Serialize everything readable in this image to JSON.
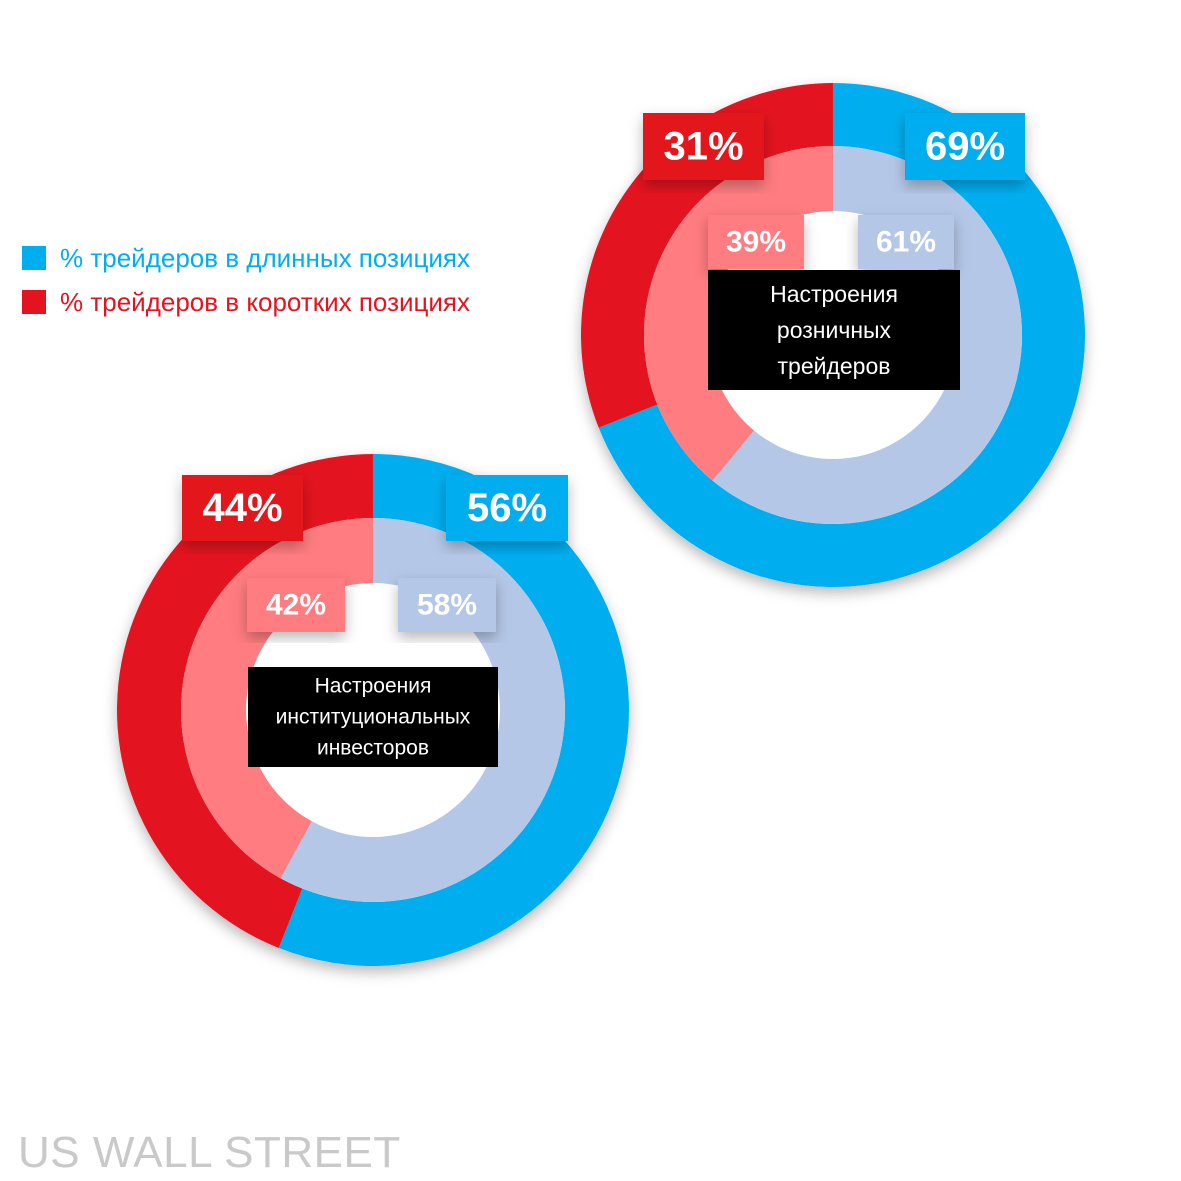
{
  "legend": {
    "long_label": "% трейдеров в длинных позициях",
    "short_label": "% трейдеров в коротких позициях"
  },
  "colors": {
    "long_outer": "#00AEEF",
    "short_outer": "#E3141F",
    "long_inner": "#B4C7E7",
    "short_inner": "#FF7C80",
    "center_box": "#000000"
  },
  "watermark": "US WALL STREET",
  "chart_data": [
    {
      "type": "pie",
      "subtype": "double-donut",
      "center_label": [
        "Настроения",
        "розничных",
        "трейдеров"
      ],
      "categories": [
        "% трейдеров в длинных позициях",
        "% трейдеров в коротких позициях"
      ],
      "series": [
        {
          "ring": "outer",
          "values": [
            69,
            31
          ],
          "labels": [
            "69%",
            "31%"
          ]
        },
        {
          "ring": "inner",
          "values": [
            61,
            39
          ],
          "labels": [
            "61%",
            "39%"
          ]
        }
      ]
    },
    {
      "type": "pie",
      "subtype": "double-donut",
      "center_label": [
        "Настроения",
        "институциональных",
        "инвесторов"
      ],
      "categories": [
        "% трейдеров в длинных позициях",
        "% трейдеров в коротких позициях"
      ],
      "series": [
        {
          "ring": "outer",
          "values": [
            56,
            44
          ],
          "labels": [
            "56%",
            "44%"
          ]
        },
        {
          "ring": "inner",
          "values": [
            58,
            42
          ],
          "labels": [
            "58%",
            "42%"
          ]
        }
      ]
    }
  ]
}
